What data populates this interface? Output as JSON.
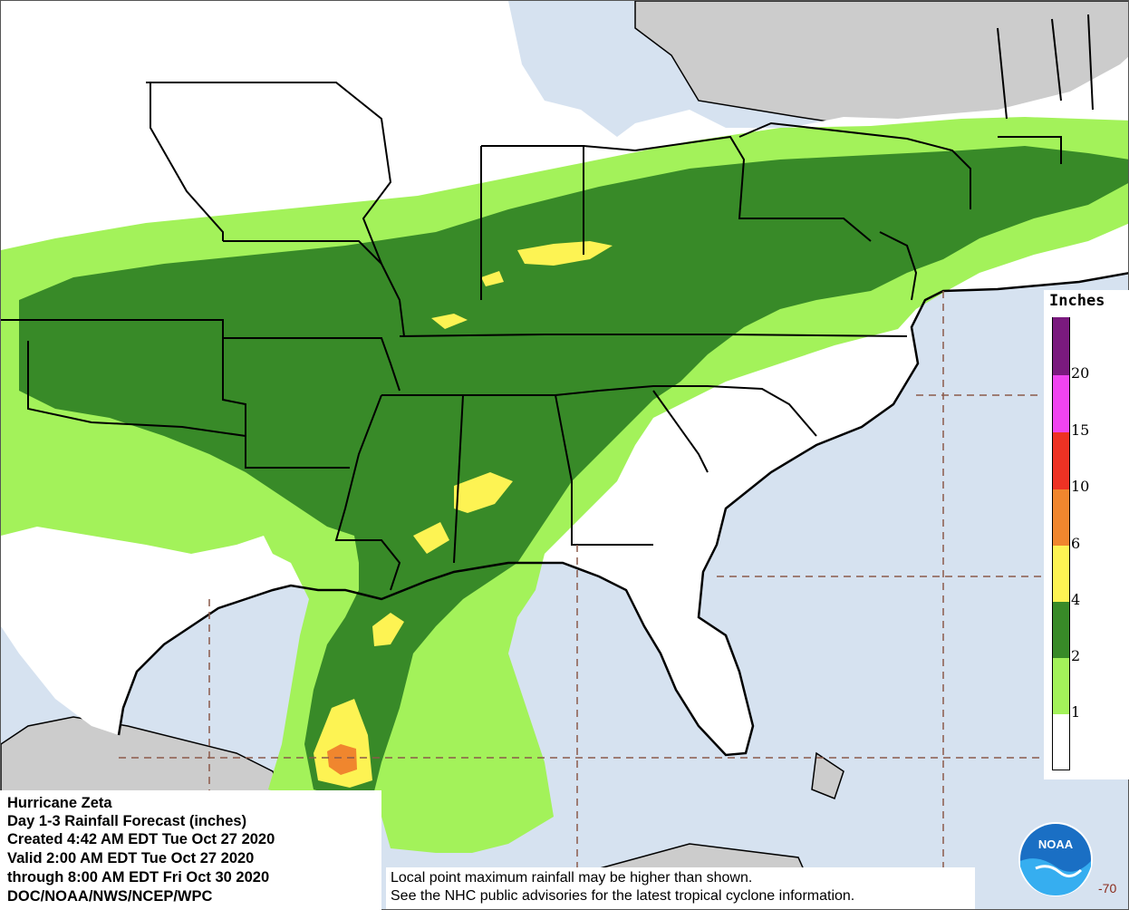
{
  "map": {
    "info_lines": [
      "Hurricane Zeta",
      "Day 1-3 Rainfall Forecast (inches)",
      "Created 4:42 AM EDT Tue Oct 27 2020",
      "Valid 2:00 AM EDT Tue Oct 27 2020",
      "through 8:00 AM EDT Fri Oct 30 2020",
      "DOC/NOAA/NWS/NCEP/WPC"
    ],
    "disclaimer": [
      "Local point maximum rainfall may be higher than shown.",
      "See the NHC public advisories for the latest tropical cyclone information."
    ],
    "coordinate_label": "-70",
    "logo_text": "NOAA"
  },
  "legend": {
    "title": "Inches",
    "bins": [
      {
        "label": "",
        "color": "#7a1a7e"
      },
      {
        "label": "20",
        "color": "#f044f0"
      },
      {
        "label": "15",
        "color": "#ee3224"
      },
      {
        "label": "10",
        "color": "#f0862e"
      },
      {
        "label": "6",
        "color": "#fdf353"
      },
      {
        "label": "4",
        "color": "#388a28"
      },
      {
        "label": "2",
        "color": "#a3f25a"
      },
      {
        "label": "1",
        "color": "#ffffff"
      }
    ]
  },
  "colors": {
    "water": "#d6e2f0",
    "land_us": "#ffffff",
    "land_other": "#cccccc",
    "rain_1_2": "#a3f25a",
    "rain_2_4": "#388a28",
    "rain_4_6": "#fdf353",
    "rain_6_10": "#f0862e",
    "graticule": "#8b5a4a"
  }
}
